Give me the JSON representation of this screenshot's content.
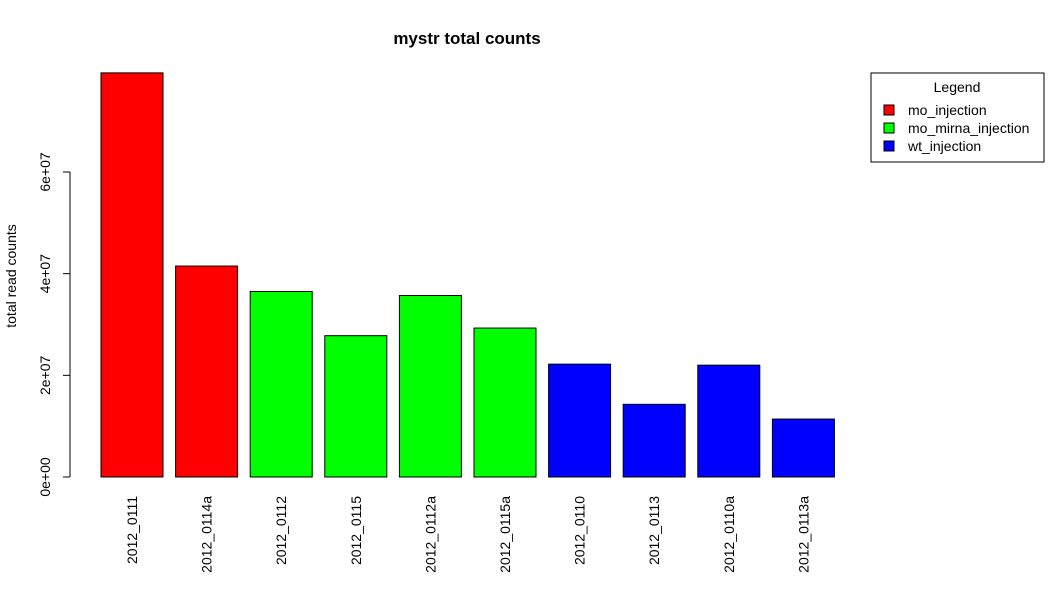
{
  "chart_data": {
    "type": "bar",
    "title": "mystr total counts",
    "ylabel": "total read counts",
    "xlabel": "",
    "ylim": [
      0,
      80000000
    ],
    "yticks": [
      0,
      20000000,
      40000000,
      60000000
    ],
    "ytick_labels": [
      "0e+00",
      "2e+07",
      "4e+07",
      "6e+07"
    ],
    "categories": [
      "2012_0111",
      "2012_0114a",
      "2012_0112",
      "2012_0115",
      "2012_0112a",
      "2012_0115a",
      "2012_0110",
      "2012_0113",
      "2012_0110a",
      "2012_0113a"
    ],
    "values": [
      79500000,
      41500000,
      36500000,
      27800000,
      35700000,
      29300000,
      22200000,
      14300000,
      22000000,
      11400000
    ],
    "groups": [
      "mo_injection",
      "mo_injection",
      "mo_mirna_injection",
      "mo_mirna_injection",
      "mo_mirna_injection",
      "mo_mirna_injection",
      "wt_injection",
      "wt_injection",
      "wt_injection",
      "wt_injection"
    ],
    "legend": {
      "title": "Legend",
      "position": "top-right",
      "entries": [
        {
          "label": "mo_injection",
          "color": "#ff0000"
        },
        {
          "label": "mo_mirna_injection",
          "color": "#00ff00"
        },
        {
          "label": "wt_injection",
          "color": "#0000ff"
        }
      ]
    },
    "grid": false
  }
}
